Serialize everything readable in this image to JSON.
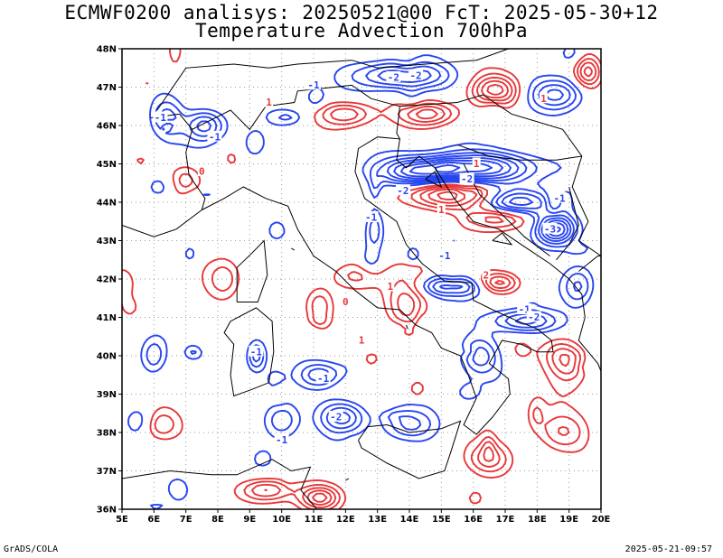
{
  "title_line1": "ECMWF0200 analisys: 20250521@00 FcT: 2025-05-30+12",
  "title_line2": "Temperature Advection 700hPa",
  "lat_labels": [
    "48N",
    "47N",
    "46N",
    "45N",
    "44N",
    "43N",
    "42N",
    "41N",
    "40N",
    "39N",
    "38N",
    "37N",
    "36N"
  ],
  "lon_labels": [
    "5E",
    "6E",
    "7E",
    "8E",
    "9E",
    "10E",
    "11E",
    "12E",
    "13E",
    "14E",
    "15E",
    "16E",
    "17E",
    "18E",
    "19E",
    "20E"
  ],
  "contour_labels": [
    {
      "text": "-2",
      "lon": 13.5,
      "lat": 47.25
    },
    {
      "text": "-2",
      "lon": 14.2,
      "lat": 47.3
    },
    {
      "text": "-1",
      "lon": 11.0,
      "lat": 47.05
    },
    {
      "text": "-1",
      "lon": 7.9,
      "lat": 45.7
    },
    {
      "text": "-1",
      "lon": 6.2,
      "lat": 46.2
    },
    {
      "text": "-2",
      "lon": 13.8,
      "lat": 44.3
    },
    {
      "text": "-2",
      "lon": 15.8,
      "lat": 44.6
    },
    {
      "text": "-3",
      "lon": 18.4,
      "lat": 43.3
    },
    {
      "text": "-1",
      "lon": 18.7,
      "lat": 44.1
    },
    {
      "text": "-1",
      "lon": 17.6,
      "lat": 41.2
    },
    {
      "text": "-2",
      "lon": 17.9,
      "lat": 41.0
    },
    {
      "text": "-1",
      "lon": 15.1,
      "lat": 42.6
    },
    {
      "text": "-1",
      "lon": 12.8,
      "lat": 43.6
    },
    {
      "text": "-1",
      "lon": 9.2,
      "lat": 40.1
    },
    {
      "text": "-1",
      "lon": 11.3,
      "lat": 39.4
    },
    {
      "text": "-2",
      "lon": 11.7,
      "lat": 38.4
    },
    {
      "text": "-1",
      "lon": 10.0,
      "lat": 37.8
    },
    {
      "text": "1",
      "lon": 16.1,
      "lat": 45.0
    },
    {
      "text": "1",
      "lon": 15.0,
      "lat": 43.8
    },
    {
      "text": "1",
      "lon": 9.6,
      "lat": 46.6
    },
    {
      "text": "1",
      "lon": 13.4,
      "lat": 41.8
    },
    {
      "text": "1",
      "lon": 12.5,
      "lat": 40.4
    },
    {
      "text": "1",
      "lon": 18.2,
      "lat": 46.7
    },
    {
      "text": "0",
      "lon": 12.0,
      "lat": 41.4
    },
    {
      "text": "0",
      "lon": 7.5,
      "lat": 44.8
    },
    {
      "text": "2",
      "lon": 16.4,
      "lat": 42.1
    }
  ],
  "colors": {
    "warm": "#e8383a",
    "cold": "#2846f0",
    "coast": "#000000",
    "grid": "#9a9a9a"
  },
  "footer_left": "GrADS/COLA",
  "footer_right": "2025-05-21-09:57"
}
